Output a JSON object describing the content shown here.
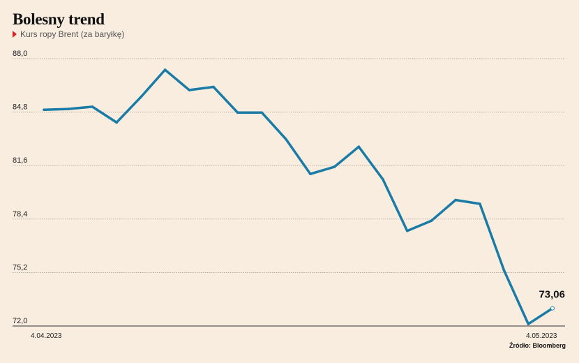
{
  "chart_data": {
    "type": "line",
    "title": "Bolesny trend",
    "subtitle": "Kurs ropy Brent (za baryłkę)",
    "source": "Źródło: Bloomberg",
    "xlabel": "",
    "ylabel": "",
    "x_tick_labels": [
      "4.04.2023",
      "4.05.2023"
    ],
    "y_ticks": [
      "72,0",
      "75,2",
      "78,4",
      "81,6",
      "84,8",
      "88,0"
    ],
    "ylim": [
      72.0,
      88.0
    ],
    "grid": true,
    "line_color": "#1a7ca6",
    "end_label": "73,06",
    "series": [
      {
        "values": [
          84.94,
          84.99,
          85.12,
          84.18,
          85.7,
          87.33,
          86.12,
          86.31,
          84.77,
          84.77,
          83.17,
          81.1,
          81.53,
          82.73,
          80.77,
          77.69,
          78.3,
          79.54,
          79.31,
          75.32,
          72.12,
          73.06
        ]
      }
    ]
  }
}
